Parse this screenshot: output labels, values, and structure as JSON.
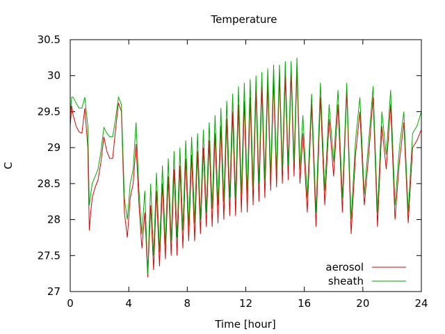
{
  "chart_data": {
    "type": "line",
    "title": "Temperature",
    "xlabel": "Time [hour]",
    "ylabel": "C",
    "xlim": [
      0,
      24
    ],
    "ylim": [
      27,
      30.5
    ],
    "xticks": [
      0,
      4,
      8,
      12,
      16,
      20,
      24
    ],
    "yticks": [
      27,
      27.5,
      28,
      28.5,
      29,
      29.5,
      30,
      30.5
    ],
    "grid": false,
    "legend_position": "bottom-right",
    "series": [
      {
        "name": "aerosol",
        "color": "#dd0000",
        "x": [
          0.0,
          0.1,
          0.2,
          0.4,
          0.6,
          0.8,
          1.0,
          1.2,
          1.3,
          1.4,
          1.5,
          1.7,
          1.9,
          2.1,
          2.3,
          2.5,
          2.7,
          2.9,
          3.1,
          3.3,
          3.5,
          3.7,
          3.9,
          4.1,
          4.3,
          4.5,
          4.7,
          4.9,
          5.1,
          5.3,
          5.5,
          5.7,
          5.9,
          6.1,
          6.3,
          6.5,
          6.7,
          6.9,
          7.1,
          7.3,
          7.5,
          7.7,
          7.9,
          8.1,
          8.3,
          8.5,
          8.7,
          8.9,
          9.1,
          9.3,
          9.5,
          9.7,
          9.9,
          10.1,
          10.3,
          10.5,
          10.7,
          10.9,
          11.1,
          11.3,
          11.5,
          11.7,
          11.9,
          12.1,
          12.3,
          12.5,
          12.7,
          12.9,
          13.1,
          13.3,
          13.5,
          13.7,
          13.9,
          14.1,
          14.3,
          14.5,
          14.7,
          14.9,
          15.1,
          15.3,
          15.5,
          15.7,
          15.9,
          16.2,
          16.5,
          16.8,
          17.1,
          17.4,
          17.7,
          18.0,
          18.3,
          18.6,
          18.9,
          19.2,
          19.5,
          19.8,
          20.1,
          20.4,
          20.7,
          21.0,
          21.3,
          21.6,
          21.9,
          22.2,
          22.5,
          22.8,
          23.1,
          23.4,
          23.7,
          24.0
        ],
        "values": [
          29.3,
          29.58,
          29.45,
          29.3,
          29.22,
          29.2,
          29.55,
          29.0,
          27.85,
          28.1,
          28.3,
          28.45,
          28.55,
          28.8,
          29.15,
          28.95,
          28.85,
          28.85,
          29.25,
          29.62,
          29.5,
          28.1,
          27.75,
          28.3,
          28.5,
          29.05,
          28.2,
          27.6,
          28.1,
          27.2,
          28.2,
          27.3,
          28.4,
          27.35,
          28.5,
          27.45,
          28.6,
          27.5,
          28.7,
          27.5,
          28.75,
          27.6,
          28.85,
          27.7,
          28.9,
          27.7,
          28.95,
          27.8,
          29.0,
          27.9,
          29.1,
          27.9,
          29.2,
          27.95,
          29.3,
          28.0,
          29.4,
          28.05,
          29.5,
          28.05,
          29.6,
          28.1,
          29.65,
          28.1,
          29.7,
          28.2,
          29.8,
          28.25,
          29.85,
          28.3,
          29.9,
          28.4,
          29.95,
          28.45,
          30.0,
          28.5,
          30.0,
          28.55,
          30.05,
          28.6,
          30.1,
          28.5,
          29.2,
          28.1,
          29.6,
          27.9,
          29.7,
          28.2,
          29.4,
          28.6,
          29.6,
          28.1,
          29.8,
          27.8,
          28.9,
          29.5,
          28.2,
          28.9,
          29.7,
          27.9,
          29.3,
          28.7,
          29.6,
          28.0,
          28.8,
          29.35,
          27.95,
          29.0,
          29.1,
          29.25
        ]
      },
      {
        "name": "sheath",
        "color": "#00aa00",
        "x": [
          0.0,
          0.1,
          0.2,
          0.4,
          0.6,
          0.8,
          1.0,
          1.2,
          1.3,
          1.4,
          1.5,
          1.7,
          1.9,
          2.1,
          2.3,
          2.5,
          2.7,
          2.9,
          3.1,
          3.3,
          3.5,
          3.7,
          3.9,
          4.1,
          4.3,
          4.5,
          4.7,
          4.9,
          5.1,
          5.3,
          5.5,
          5.7,
          5.9,
          6.1,
          6.3,
          6.5,
          6.7,
          6.9,
          7.1,
          7.3,
          7.5,
          7.7,
          7.9,
          8.1,
          8.3,
          8.5,
          8.7,
          8.9,
          9.1,
          9.3,
          9.5,
          9.7,
          9.9,
          10.1,
          10.3,
          10.5,
          10.7,
          10.9,
          11.1,
          11.3,
          11.5,
          11.7,
          11.9,
          12.1,
          12.3,
          12.5,
          12.7,
          12.9,
          13.1,
          13.3,
          13.5,
          13.7,
          13.9,
          14.1,
          14.3,
          14.5,
          14.7,
          14.9,
          15.1,
          15.3,
          15.5,
          15.7,
          15.9,
          16.2,
          16.5,
          16.8,
          17.1,
          17.4,
          17.7,
          18.0,
          18.3,
          18.6,
          18.9,
          19.2,
          19.5,
          19.8,
          20.1,
          20.4,
          20.7,
          21.0,
          21.3,
          21.6,
          21.9,
          22.2,
          22.5,
          22.8,
          23.1,
          23.4,
          23.7,
          24.0
        ],
        "values": [
          29.45,
          29.7,
          29.7,
          29.62,
          29.55,
          29.55,
          29.7,
          29.3,
          28.2,
          28.35,
          28.5,
          28.6,
          28.7,
          28.95,
          29.28,
          29.2,
          29.15,
          29.15,
          29.4,
          29.7,
          29.6,
          28.3,
          28.0,
          28.5,
          28.7,
          29.35,
          28.4,
          27.8,
          28.4,
          27.25,
          28.5,
          27.5,
          28.65,
          27.55,
          28.75,
          27.65,
          28.85,
          27.7,
          28.95,
          27.75,
          29.0,
          27.85,
          29.1,
          27.9,
          29.15,
          27.95,
          29.2,
          28.0,
          29.25,
          28.1,
          29.35,
          28.15,
          29.45,
          28.2,
          29.55,
          28.25,
          29.65,
          28.3,
          29.75,
          28.3,
          29.85,
          28.35,
          29.9,
          28.35,
          29.95,
          28.45,
          30.0,
          28.5,
          30.05,
          28.55,
          30.1,
          28.6,
          30.15,
          28.65,
          30.15,
          28.7,
          30.2,
          28.75,
          30.2,
          28.8,
          30.25,
          28.7,
          29.45,
          28.3,
          29.75,
          28.1,
          29.9,
          28.4,
          29.6,
          28.8,
          29.8,
          28.3,
          29.9,
          28.0,
          29.1,
          29.7,
          28.35,
          29.1,
          29.85,
          28.1,
          29.5,
          28.9,
          29.8,
          28.2,
          29.0,
          29.5,
          28.1,
          29.2,
          29.3,
          29.5
        ]
      }
    ]
  }
}
